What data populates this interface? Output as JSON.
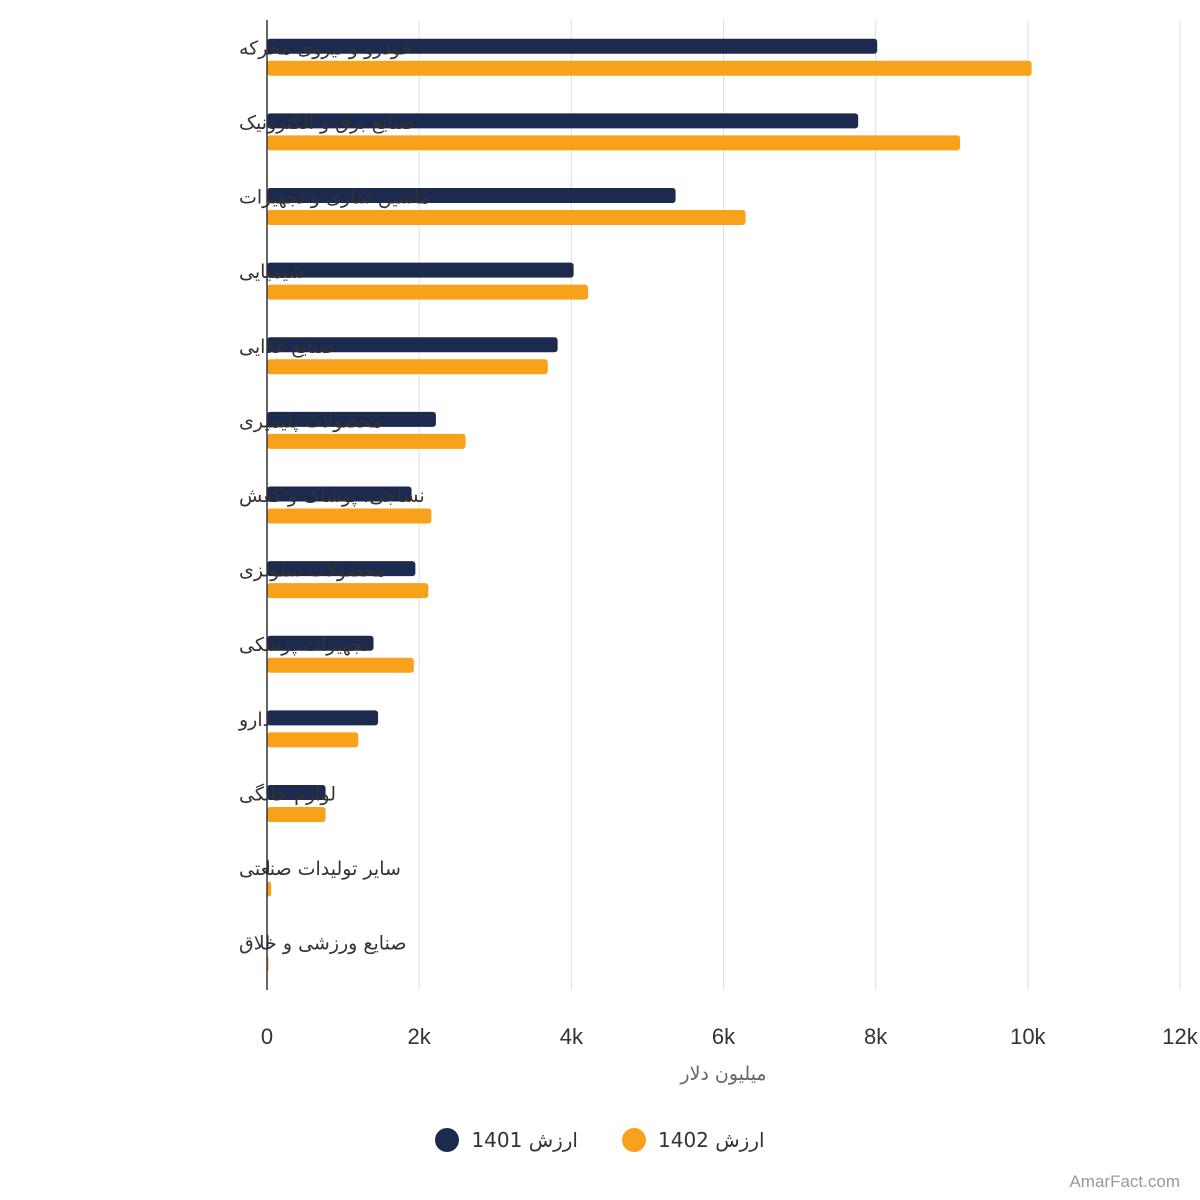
{
  "chart_data": {
    "type": "bar",
    "orientation": "horizontal",
    "categories": [
      "خودرو و نیروی محرکه",
      "صنایع برق و الکترونیک",
      "ماشین سازی و تجهیزات",
      "شیمیایی",
      "صنایع غذایی",
      "محصولات پلیمیری",
      "نساجی، پوشاک و کفش",
      "محصولات سلولزی",
      "تجهیزات پزشکی",
      "دارو",
      "لوازم خانگی",
      "سایر تولیدات صنعتی",
      "صنایع ورزشی و خلاق"
    ],
    "series": [
      {
        "name": "ارزش 1401",
        "color": "#1b2a4e",
        "values": [
          8020,
          7770,
          5370,
          4030,
          3820,
          2220,
          1900,
          1950,
          1400,
          1460,
          770,
          25,
          5
        ]
      },
      {
        "name": "ارزش 1402",
        "color": "#f8a11b",
        "values": [
          10050,
          9110,
          6290,
          4220,
          3690,
          2610,
          2160,
          2120,
          1930,
          1200,
          770,
          55,
          20
        ]
      }
    ],
    "xlabel": "میلیون دلار",
    "ylabel": "",
    "xlim": [
      0,
      12000
    ],
    "xticks": [
      0,
      2000,
      4000,
      6000,
      8000,
      10000,
      12000
    ],
    "xtick_labels": [
      "0",
      "2k",
      "4k",
      "6k",
      "8k",
      "10k",
      "12k"
    ],
    "grid": "vertical",
    "legend_position": "bottom-center"
  },
  "legend": {
    "items": [
      {
        "label": "ارزش 1401",
        "color": "#1b2a4e"
      },
      {
        "label": "ارزش 1402",
        "color": "#f8a11b"
      }
    ]
  },
  "credit": "AmarFact.com"
}
